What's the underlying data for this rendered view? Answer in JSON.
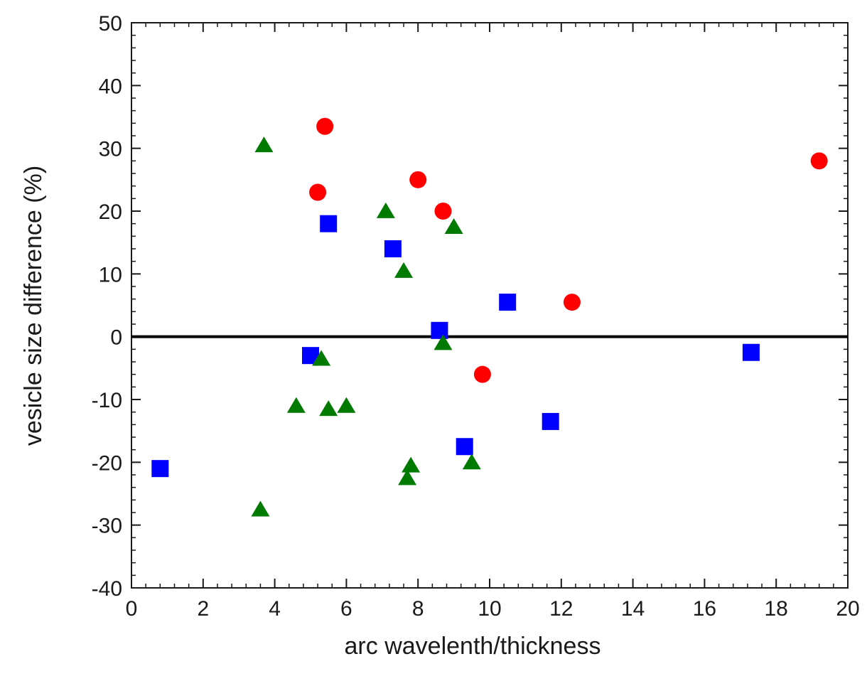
{
  "chart_data": {
    "type": "scatter",
    "title": "",
    "xlabel": "arc wavelenth/thickness",
    "ylabel": "vesicle size difference (%)",
    "xlim": [
      0,
      20
    ],
    "ylim": [
      -40,
      50
    ],
    "x_ticks": [
      0,
      2,
      4,
      6,
      8,
      10,
      12,
      14,
      16,
      18,
      20
    ],
    "y_ticks": [
      50,
      40,
      30,
      20,
      10,
      0,
      -10,
      -20,
      -30,
      -40
    ],
    "x_tick_labels": [
      "0",
      "2",
      "4",
      "6",
      "8",
      "10",
      "12",
      "14",
      "16",
      "18",
      "20"
    ],
    "y_tick_labels": [
      "50",
      "40",
      "30",
      "20",
      "10",
      "0",
      "-10",
      "-20",
      "-30",
      "-40"
    ],
    "reference_line_y": 0,
    "grid": false,
    "legend": "none",
    "series": [
      {
        "marker": "circle",
        "color": "#ff0000",
        "points": [
          {
            "x": 5.4,
            "y": 33.5
          },
          {
            "x": 5.2,
            "y": 23.0
          },
          {
            "x": 8.0,
            "y": 25.0
          },
          {
            "x": 8.7,
            "y": 20.0
          },
          {
            "x": 19.2,
            "y": 28.0
          },
          {
            "x": 12.3,
            "y": 5.5
          },
          {
            "x": 9.8,
            "y": -6.0
          }
        ]
      },
      {
        "marker": "square",
        "color": "#0000ff",
        "points": [
          {
            "x": 5.5,
            "y": 18.0
          },
          {
            "x": 7.3,
            "y": 14.0
          },
          {
            "x": 10.5,
            "y": 5.5
          },
          {
            "x": 8.6,
            "y": 1.0
          },
          {
            "x": 5.0,
            "y": -3.0
          },
          {
            "x": 17.3,
            "y": -2.5
          },
          {
            "x": 11.7,
            "y": -13.5
          },
          {
            "x": 9.3,
            "y": -17.5
          },
          {
            "x": 0.8,
            "y": -21.0
          }
        ]
      },
      {
        "marker": "triangle",
        "color": "#007a00",
        "points": [
          {
            "x": 3.7,
            "y": 30.5
          },
          {
            "x": 7.1,
            "y": 20.0
          },
          {
            "x": 9.0,
            "y": 17.5
          },
          {
            "x": 7.6,
            "y": 10.5
          },
          {
            "x": 8.7,
            "y": -1.0
          },
          {
            "x": 5.3,
            "y": -3.5
          },
          {
            "x": 4.6,
            "y": -11.0
          },
          {
            "x": 5.5,
            "y": -11.5
          },
          {
            "x": 6.0,
            "y": -11.0
          },
          {
            "x": 7.8,
            "y": -20.5
          },
          {
            "x": 9.5,
            "y": -20.0
          },
          {
            "x": 7.7,
            "y": -22.5
          },
          {
            "x": 3.6,
            "y": -27.5
          }
        ]
      }
    ]
  }
}
